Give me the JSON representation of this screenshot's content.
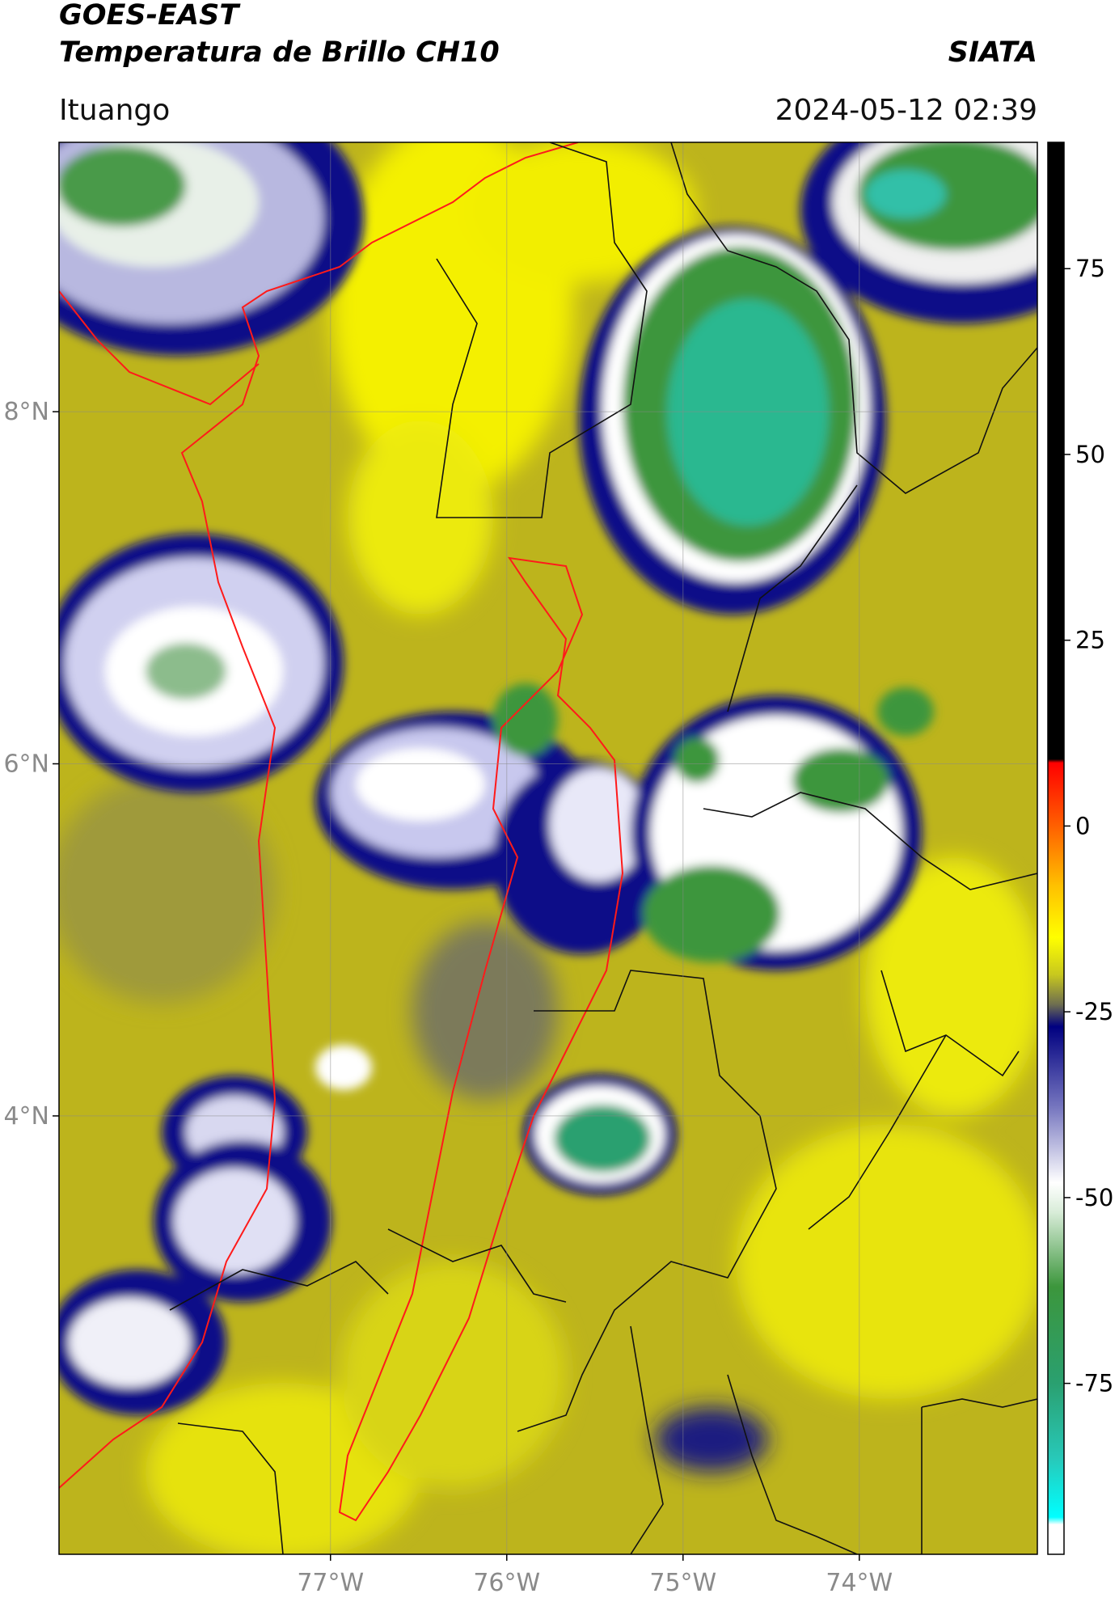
{
  "chart_data": {
    "type": "map",
    "title": "GOES-EAST",
    "subtitle": "Temperatura de Brillo CH10",
    "source": "SIATA",
    "region": "Ituango",
    "date": "2024-05-12 02:39",
    "xlim": [
      -78.54,
      -72.99
    ],
    "ylim": [
      1.51,
      9.53
    ],
    "xticks": [
      {
        "value": -77,
        "label": "77°W"
      },
      {
        "value": -76,
        "label": "76°W"
      },
      {
        "value": -75,
        "label": "75°W"
      },
      {
        "value": -74,
        "label": "74°W"
      }
    ],
    "yticks": [
      {
        "value": 4,
        "label": "4°N"
      },
      {
        "value": 6,
        "label": "6°N"
      },
      {
        "value": 8,
        "label": "8°N"
      }
    ],
    "grid": true,
    "colorbar": {
      "lim": [
        -98,
        92
      ],
      "ticks": [
        -75,
        -50,
        -25,
        0,
        25,
        50,
        75
      ],
      "stops": [
        {
          "value": 92,
          "color": "#000000"
        },
        {
          "value": 9,
          "color": "#000000"
        },
        {
          "value": 8.5,
          "color": "#ff0000"
        },
        {
          "value": 0,
          "color": "#ff6000"
        },
        {
          "value": -8,
          "color": "#ffc000"
        },
        {
          "value": -15,
          "color": "#ffff00"
        },
        {
          "value": -20,
          "color": "#c8c81e"
        },
        {
          "value": -24,
          "color": "#6e6e50"
        },
        {
          "value": -27,
          "color": "#000080"
        },
        {
          "value": -38,
          "color": "#7878c0"
        },
        {
          "value": -48,
          "color": "#ffffff"
        },
        {
          "value": -52,
          "color": "#d8ecd8"
        },
        {
          "value": -62,
          "color": "#3c963c"
        },
        {
          "value": -75,
          "color": "#2aa070"
        },
        {
          "value": -85,
          "color": "#28c8b8"
        },
        {
          "value": -93,
          "color": "#00ffff"
        },
        {
          "value": -94,
          "color": "#ffffff"
        },
        {
          "value": -98,
          "color": "#ffffff"
        }
      ]
    }
  }
}
